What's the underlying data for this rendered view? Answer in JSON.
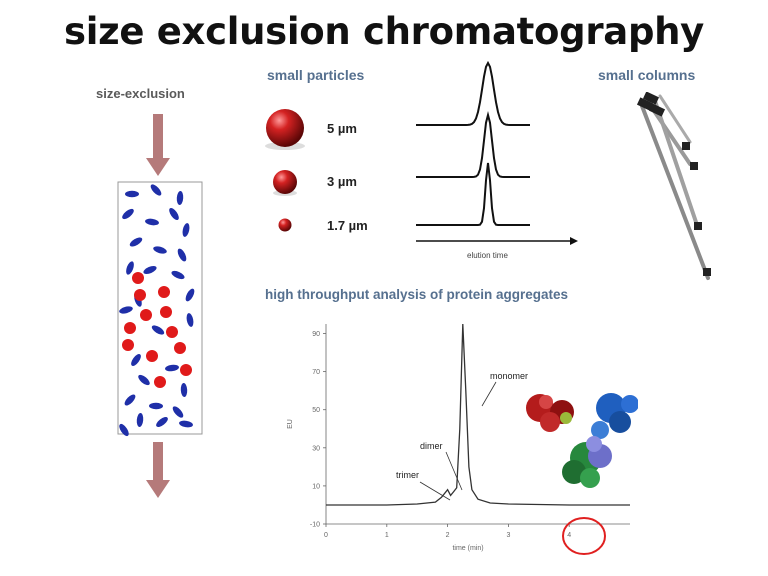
{
  "title": "size exclusion chromatography",
  "left_panel": {
    "label": "size-exclusion"
  },
  "particles": {
    "heading": "small particles",
    "sizes": [
      "5 µm",
      "3 µm",
      "1.7 µm"
    ]
  },
  "peaks": {
    "xlabel": "elution time"
  },
  "columns": {
    "heading": "small columns"
  },
  "aggregates": {
    "heading": "high throughput analysis of protein aggregates",
    "chart_data": {
      "type": "line",
      "ylabel": "EU",
      "xlabel": "time (min)",
      "x_ticks": [
        "0",
        "1",
        "2",
        "3",
        "4"
      ],
      "y_ticks": [
        "90",
        "70",
        "50",
        "30",
        "10",
        "-10"
      ],
      "xlim": [
        0,
        5
      ],
      "ylim": [
        -10,
        95
      ],
      "x": [
        0,
        0.5,
        1.0,
        1.5,
        1.8,
        1.9,
        2.0,
        2.05,
        2.1,
        2.15,
        2.2,
        2.25,
        2.3,
        2.35,
        2.4,
        2.5,
        2.7,
        3.0,
        4.0,
        5.0
      ],
      "y": [
        0,
        0,
        0,
        0.5,
        1.5,
        4,
        8,
        5,
        7,
        9,
        40,
        95,
        60,
        20,
        8,
        3,
        1,
        0.5,
        0,
        0
      ],
      "annotations": [
        "monomer",
        "dimer",
        "trimer"
      ],
      "highlight_color": "#e02020"
    }
  }
}
